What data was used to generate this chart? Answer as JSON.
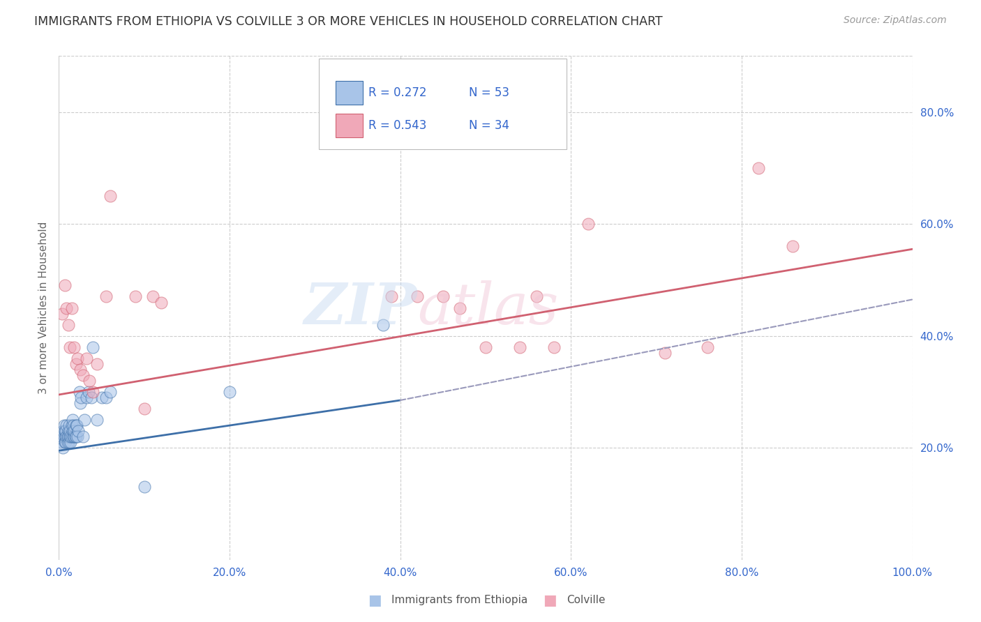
{
  "title": "IMMIGRANTS FROM ETHIOPIA VS COLVILLE 3 OR MORE VEHICLES IN HOUSEHOLD CORRELATION CHART",
  "source": "Source: ZipAtlas.com",
  "ylabel": "3 or more Vehicles in Household",
  "xlim": [
    0.0,
    1.0
  ],
  "ylim": [
    0.0,
    0.9
  ],
  "x_tick_labels": [
    "0.0%",
    "20.0%",
    "40.0%",
    "60.0%",
    "80.0%",
    "100.0%"
  ],
  "x_tick_values": [
    0.0,
    0.2,
    0.4,
    0.6,
    0.8,
    1.0
  ],
  "y_tick_labels_right": [
    "20.0%",
    "40.0%",
    "60.0%",
    "80.0%"
  ],
  "y_tick_values_right": [
    0.2,
    0.4,
    0.6,
    0.8
  ],
  "legend_entries": [
    {
      "label": "Immigrants from Ethiopia",
      "R": "0.272",
      "N": "53",
      "color": "#aac4e8"
    },
    {
      "label": "Colville",
      "R": "0.543",
      "N": "34",
      "color": "#f4b8c8"
    }
  ],
  "background_color": "#ffffff",
  "grid_color": "#cccccc",
  "blue_scatter_color": "#a8c4e8",
  "pink_scatter_color": "#f0a8b8",
  "blue_line_color": "#3d6fa8",
  "pink_line_color": "#d06070",
  "dashed_line_color": "#9999bb",
  "blue_scatter_x": [
    0.003,
    0.004,
    0.005,
    0.005,
    0.006,
    0.006,
    0.007,
    0.007,
    0.008,
    0.008,
    0.008,
    0.009,
    0.009,
    0.01,
    0.01,
    0.011,
    0.011,
    0.012,
    0.012,
    0.013,
    0.013,
    0.014,
    0.014,
    0.015,
    0.015,
    0.016,
    0.016,
    0.017,
    0.017,
    0.018,
    0.018,
    0.019,
    0.02,
    0.02,
    0.021,
    0.022,
    0.023,
    0.024,
    0.025,
    0.026,
    0.028,
    0.03,
    0.032,
    0.035,
    0.038,
    0.04,
    0.045,
    0.05,
    0.055,
    0.06,
    0.1,
    0.2,
    0.38
  ],
  "blue_scatter_y": [
    0.21,
    0.22,
    0.23,
    0.2,
    0.22,
    0.24,
    0.21,
    0.23,
    0.22,
    0.21,
    0.23,
    0.22,
    0.24,
    0.21,
    0.22,
    0.23,
    0.22,
    0.21,
    0.24,
    0.22,
    0.23,
    0.21,
    0.22,
    0.24,
    0.22,
    0.23,
    0.25,
    0.22,
    0.24,
    0.22,
    0.23,
    0.22,
    0.24,
    0.22,
    0.24,
    0.22,
    0.23,
    0.3,
    0.28,
    0.29,
    0.22,
    0.25,
    0.29,
    0.3,
    0.29,
    0.38,
    0.25,
    0.29,
    0.29,
    0.3,
    0.13,
    0.3,
    0.42
  ],
  "pink_scatter_x": [
    0.004,
    0.007,
    0.009,
    0.011,
    0.013,
    0.015,
    0.018,
    0.02,
    0.022,
    0.025,
    0.028,
    0.032,
    0.036,
    0.04,
    0.045,
    0.055,
    0.06,
    0.09,
    0.1,
    0.11,
    0.12,
    0.39,
    0.42,
    0.45,
    0.47,
    0.5,
    0.54,
    0.56,
    0.58,
    0.62,
    0.71,
    0.76,
    0.82,
    0.86
  ],
  "pink_scatter_y": [
    0.44,
    0.49,
    0.45,
    0.42,
    0.38,
    0.45,
    0.38,
    0.35,
    0.36,
    0.34,
    0.33,
    0.36,
    0.32,
    0.3,
    0.35,
    0.47,
    0.65,
    0.47,
    0.27,
    0.47,
    0.46,
    0.47,
    0.47,
    0.47,
    0.45,
    0.38,
    0.38,
    0.47,
    0.38,
    0.6,
    0.37,
    0.38,
    0.7,
    0.56
  ],
  "blue_line_x": [
    0.0,
    0.4
  ],
  "blue_line_y_start": 0.195,
  "blue_line_y_end": 0.285,
  "pink_line_x": [
    0.0,
    1.0
  ],
  "pink_line_y_start": 0.295,
  "pink_line_y_end": 0.555,
  "dashed_line_x": [
    0.4,
    1.0
  ],
  "dashed_line_y_start": 0.285,
  "dashed_line_y_end": 0.465,
  "legend_text_color": "#3366cc",
  "legend_N_color": "#3366cc"
}
